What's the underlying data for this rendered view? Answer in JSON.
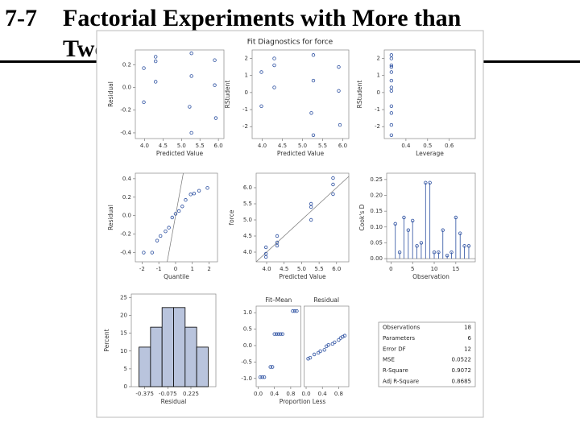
{
  "title": {
    "number": "7-7",
    "lines": [
      "Factorial Experiments with More than",
      "Two Factors"
    ]
  },
  "figure_title": "Fit Diagnostics for force",
  "chart_data": [
    {
      "type": "scatter",
      "x_label": "Predicted Value",
      "y_label": "Residual",
      "x": [
        3.98,
        3.98,
        4.3,
        4.3,
        4.3,
        5.27,
        5.27,
        5.22,
        5.27,
        5.9,
        5.9,
        5.93
      ],
      "values": [
        0.17,
        -0.13,
        0.27,
        0.23,
        0.05,
        0.3,
        0.1,
        -0.17,
        -0.4,
        0.24,
        0.02,
        -0.27
      ],
      "color": "#2b4fa0",
      "xlim": [
        3.75,
        6.15
      ],
      "ylim": [
        -0.45,
        0.33
      ],
      "xticks": [
        {
          "value": 4,
          "label": "4.0"
        },
        4.5,
        {
          "value": 5,
          "label": "5.0"
        },
        5.5,
        {
          "value": 6,
          "label": "6.0"
        }
      ],
      "yticks": [
        -0.4,
        -0.2,
        {
          "value": 0,
          "label": "0.0"
        },
        0.2
      ]
    },
    {
      "type": "scatter",
      "x_label": "Predicted Value",
      "y_label": "RStudent",
      "x": [
        3.98,
        3.98,
        4.3,
        4.3,
        4.3,
        5.27,
        5.27,
        5.22,
        5.27,
        5.9,
        5.9,
        5.93
      ],
      "values": [
        1.2,
        -0.8,
        2.0,
        1.6,
        0.3,
        2.2,
        0.7,
        -1.2,
        -2.5,
        1.5,
        0.1,
        -1.9
      ],
      "color": "#2b4fa0",
      "xlim": [
        3.75,
        6.15
      ],
      "ylim": [
        -2.7,
        2.5
      ],
      "xticks": [
        {
          "value": 4,
          "label": "4.0"
        },
        4.5,
        {
          "value": 5,
          "label": "5.0"
        },
        5.5,
        {
          "value": 6,
          "label": "6.0"
        }
      ],
      "yticks": [
        -2,
        -1,
        0,
        1,
        2
      ]
    },
    {
      "type": "scatter",
      "x_label": "Leverage",
      "y_label": "RStudent",
      "x": [
        0.333,
        0.333,
        0.333,
        0.333,
        0.333,
        0.333,
        0.333,
        0.333,
        0.333,
        0.333,
        0.333,
        0.333
      ],
      "values": [
        1.2,
        -0.8,
        2.0,
        1.6,
        0.3,
        2.2,
        0.7,
        -1.2,
        -2.5,
        1.5,
        0.1,
        -1.9
      ],
      "color": "#2b4fa0",
      "xlim": [
        0.3,
        0.72
      ],
      "ylim": [
        -2.7,
        2.5
      ],
      "xticks": [
        0.4,
        0.5,
        0.6
      ],
      "yticks": [
        -2,
        -1,
        0,
        1,
        2
      ]
    },
    {
      "type": "scatter",
      "x_label": "Quantile",
      "y_label": "Residual",
      "diagonal": true,
      "x": [
        -1.9,
        -1.4,
        -1.1,
        -0.9,
        -0.6,
        -0.4,
        -0.2,
        0,
        0.2,
        0.4,
        0.6,
        0.9,
        1.1,
        1.4,
        1.9
      ],
      "values": [
        -0.4,
        -0.4,
        -0.27,
        -0.22,
        -0.17,
        -0.13,
        -0.02,
        0.02,
        0.05,
        0.1,
        0.17,
        0.23,
        0.24,
        0.27,
        0.3
      ],
      "color": "#2b4fa0",
      "xlim": [
        -2.4,
        2.5
      ],
      "ylim": [
        -0.5,
        0.46
      ],
      "xticks": [
        -2,
        -1,
        0,
        1,
        2
      ],
      "yticks": [
        -0.4,
        -0.2,
        {
          "value": 0,
          "label": "0.0"
        },
        0.2,
        0.4
      ]
    },
    {
      "type": "scatter",
      "x_label": "Predicted Value",
      "y_label": "force",
      "diagonal": true,
      "x": [
        3.98,
        3.98,
        3.98,
        4.3,
        4.3,
        4.3,
        5.27,
        5.27,
        5.27,
        5.9,
        5.9,
        5.9
      ],
      "values": [
        4.15,
        3.85,
        3.95,
        4.5,
        4.3,
        4.2,
        5.5,
        5.4,
        5.0,
        6.3,
        6.1,
        5.8
      ],
      "color": "#2b4fa0",
      "xlim": [
        3.7,
        6.35
      ],
      "ylim": [
        3.7,
        6.45
      ],
      "xticks": [
        {
          "value": 4,
          "label": "4.0"
        },
        4.5,
        {
          "value": 5,
          "label": "5.0"
        },
        5.5,
        {
          "value": 6,
          "label": "6.0"
        }
      ],
      "yticks": [
        {
          "value": 4,
          "label": "4.0"
        },
        4.5,
        {
          "value": 5,
          "label": "5.0"
        },
        5.5,
        {
          "value": 6,
          "label": "6.0"
        }
      ]
    },
    {
      "type": "stem",
      "x_label": "Observation",
      "y_label": "Cook's D",
      "x": [
        1,
        2,
        3,
        4,
        5,
        6,
        7,
        8,
        9,
        10,
        11,
        12,
        13,
        14,
        15,
        16,
        17,
        18
      ],
      "values": [
        0.11,
        0.02,
        0.13,
        0.09,
        0.12,
        0.04,
        0.05,
        0.24,
        0.24,
        0.02,
        0.02,
        0.09,
        0.01,
        0.02,
        0.13,
        0.08,
        0.04,
        0.04
      ],
      "color": "#2b4fa0",
      "xlim": [
        -1,
        19.5
      ],
      "ylim": [
        -0.01,
        0.27
      ],
      "xticks": [
        0,
        5,
        10,
        15
      ],
      "yticks": [
        {
          "value": 0,
          "label": "0.00"
        },
        0.05,
        {
          "value": 0.1,
          "label": "0.10"
        },
        0.15,
        {
          "value": 0.2,
          "label": "0.20"
        },
        0.25
      ]
    },
    {
      "type": "histogram",
      "x_label": "Residual",
      "y_label": "Percent",
      "bins": [
        -0.45,
        -0.3,
        -0.15,
        0,
        0.15,
        0.3,
        0.45
      ],
      "values": [
        11.1,
        16.7,
        22.2,
        22.2,
        16.7,
        11.1
      ],
      "color": "#b9c4dd",
      "xlim": [
        -0.55,
        0.55
      ],
      "ylim": [
        0,
        26
      ],
      "xticks": [
        -0.375,
        -0.075,
        0.225
      ],
      "yticks": [
        0,
        5,
        10,
        15,
        20,
        25
      ]
    },
    {
      "type": "spread",
      "x_label": "Proportion Less",
      "ylim": [
        -1.25,
        1.2
      ],
      "yticks": [
        {
          "value": -1,
          "label": "-1.0"
        },
        -0.5,
        {
          "value": 0,
          "label": "0.0"
        },
        0.5,
        {
          "value": 1,
          "label": "1.0"
        }
      ],
      "panels": [
        {
          "name": "Fit–Mean",
          "xlim": [
            -0.05,
            1.05
          ],
          "xticks": [
            {
              "value": 0,
              "label": "0.0"
            },
            0.4,
            0.8
          ],
          "x": [
            0.05,
            0.1,
            0.15,
            0.3,
            0.35,
            0.4,
            0.45,
            0.5,
            0.55,
            0.6,
            0.85,
            0.9,
            0.95
          ],
          "values": [
            -0.96,
            -0.96,
            -0.96,
            -0.65,
            -0.65,
            0.35,
            0.35,
            0.35,
            0.35,
            0.35,
            1.05,
            1.05,
            1.05
          ],
          "color": "#2b4fa0"
        },
        {
          "name": "Residual",
          "xlim": [
            -0.05,
            1.05
          ],
          "xticks": [
            {
              "value": 0,
              "label": "0.0"
            },
            0.4,
            0.8
          ],
          "x": [
            0.05,
            0.1,
            0.2,
            0.3,
            0.35,
            0.45,
            0.5,
            0.55,
            0.65,
            0.7,
            0.8,
            0.85,
            0.9,
            0.95
          ],
          "values": [
            -0.4,
            -0.37,
            -0.27,
            -0.22,
            -0.17,
            -0.13,
            -0.02,
            0.02,
            0.05,
            0.1,
            0.17,
            0.23,
            0.27,
            0.3
          ],
          "color": "#2b4fa0"
        }
      ]
    },
    {
      "type": "table",
      "rows": [
        [
          "Observations",
          18
        ],
        [
          "Parameters",
          6
        ],
        [
          "Error DF",
          12
        ],
        [
          "MSE",
          0.0522
        ],
        [
          "R-Square",
          0.9072
        ],
        [
          "Adj R-Square",
          0.8685
        ]
      ]
    }
  ]
}
